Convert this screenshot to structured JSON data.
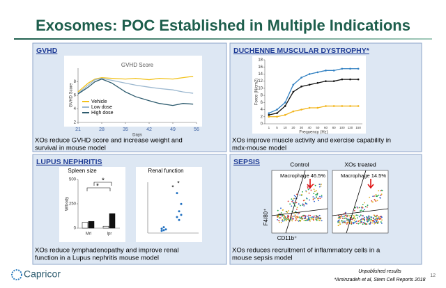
{
  "title": "Exosomes: POC Established in Multiple Indications",
  "panels": [
    {
      "title": "GVHD",
      "caption": [
        "XOs reduce GVHD score and  increase weight and",
        "survival in mouse model"
      ],
      "chart": {
        "type": "line",
        "title": "GVHD Score",
        "ylabel": "GVHD Score",
        "xlabel": "Days",
        "x": [
          21,
          24,
          26,
          28,
          31,
          35,
          38,
          42,
          45,
          49,
          52,
          55
        ],
        "series": [
          {
            "name": "Vehicle",
            "color": "#f2c21b",
            "values": [
              6.5,
              7.8,
              8.4,
              8.6,
              8.5,
              8.4,
              8.5,
              8.3,
              8.5,
              8.4,
              8.6,
              8.8
            ]
          },
          {
            "name": "Low dose",
            "color": "#9bb7cf",
            "values": [
              6.3,
              7.5,
              8.3,
              8.5,
              8.2,
              7.8,
              7.5,
              7.2,
              7.0,
              6.8,
              6.5,
              6.3
            ]
          },
          {
            "name": "High dose",
            "color": "#2d5b6e",
            "values": [
              6.2,
              7.2,
              8.0,
              8.4,
              7.8,
              6.5,
              5.8,
              5.2,
              4.8,
              4.5,
              4.8,
              4.7
            ]
          }
        ],
        "xlim": [
          21,
          56
        ],
        "xticks": [
          21,
          28,
          35,
          42,
          49,
          56
        ],
        "ylim": [
          2,
          10
        ],
        "yticks": [
          2,
          4,
          6,
          8
        ]
      }
    },
    {
      "title": "DUCHENNE MUSCULAR DYSTROPHY*",
      "caption": [
        "XOs improve muscle activity and exercise capability in",
        "mdx-mouse model"
      ],
      "chart": {
        "type": "line",
        "ylabel": "Force (N/cm2)",
        "xlabel": "Frequency (Hz)",
        "categories": [
          "1",
          "5",
          "10",
          "20",
          "30",
          "40",
          "50",
          "60",
          "80",
          "100",
          "120",
          "150"
        ],
        "series": [
          {
            "color": "#2f7fc1",
            "values": [
              3,
              4,
              6,
              11,
              13,
              14,
              14.5,
              15,
              15,
              15.5,
              15.5,
              15.5
            ]
          },
          {
            "color": "#111111",
            "values": [
              2.5,
              3,
              5,
              9,
              10.5,
              11,
              11.5,
              12,
              12,
              12.5,
              12.5,
              12.5
            ]
          },
          {
            "color": "#f2b51b",
            "values": [
              2,
              2,
              2.5,
              3.5,
              4,
              4.5,
              4.5,
              5,
              5,
              5,
              5,
              5
            ]
          }
        ],
        "ylim": [
          0,
          18
        ],
        "yticks": [
          0,
          2,
          4,
          6,
          8,
          10,
          12,
          14,
          16,
          18
        ]
      }
    },
    {
      "title": "LUPUS NEPHRITIS",
      "caption": [
        "XOs reduce lymphadenopathy and improve renal",
        "function in a Lupus nephritis mouse model"
      ],
      "charts": [
        {
          "type": "bar",
          "title": "Spleen size",
          "ylabel": "W/body",
          "categories": [
            "Mrl",
            "lpr"
          ],
          "series": [
            {
              "color": "#ffffff",
              "values": [
                60,
                20
              ]
            },
            {
              "color": "#111111",
              "values": [
                70,
                150
              ]
            }
          ],
          "ylim": [
            0,
            500
          ],
          "yticks": [
            0,
            250,
            500
          ],
          "annotations": [
            "*",
            "*"
          ]
        },
        {
          "type": "scatter",
          "title": "Renal function",
          "series": [
            {
              "color": "#1f6fc0",
              "values": [
                3,
                4,
                5,
                6,
                8
              ]
            },
            {
              "color": "#1f6fc0",
              "values": [
                22,
                30,
                40,
                55,
                18,
                25
              ]
            }
          ],
          "ylim": [
            0,
            70
          ],
          "annotations": [
            "*",
            "*"
          ]
        }
      ]
    },
    {
      "title": "SEPSIS",
      "caption": [
        "XOs reduces recruitment of inflammatory cells in a",
        "mouse sepsis model"
      ],
      "plots": [
        {
          "title": "Control",
          "gate": "Macrophage 46.5%"
        },
        {
          "title": "XOs treated",
          "gate": "Macrophage 14.5%"
        }
      ],
      "ylabel": "F4/80⁺",
      "xlabel": "CD11b⁺"
    }
  ],
  "footer": {
    "logo": "Capricor",
    "note": "Unpublished results",
    "citation": "*Aminzadeh et al, Stem Cell Reports 2018",
    "page": "12"
  }
}
